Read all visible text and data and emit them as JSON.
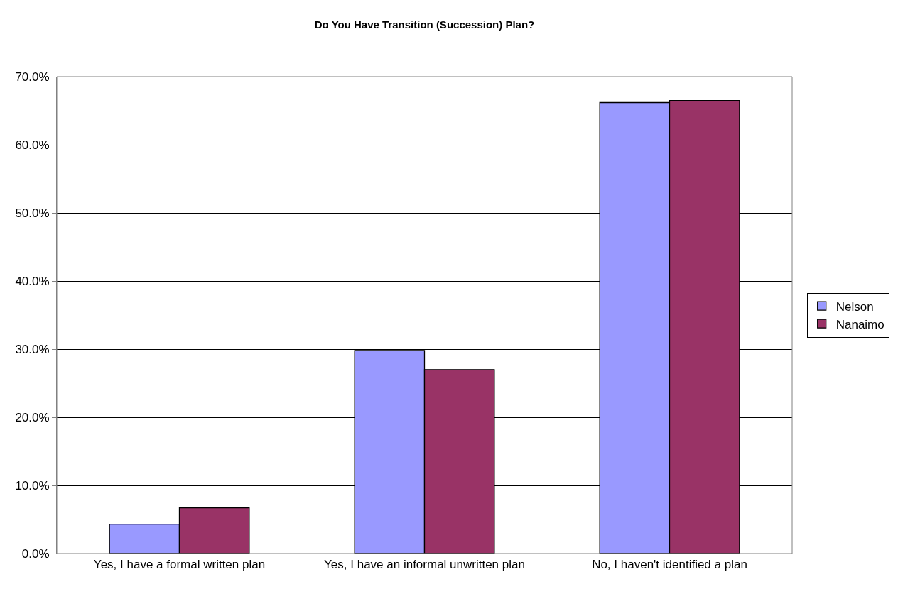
{
  "chart_data": {
    "type": "bar",
    "title": "Do You Have Transition (Succession) Plan?",
    "categories": [
      "Yes, I have a formal written plan",
      "Yes, I have an informal unwritten plan",
      "No, I haven't identified a plan"
    ],
    "series": [
      {
        "name": "Nelson",
        "color": "#9999ff",
        "values": [
          4.3,
          29.8,
          66.2
        ]
      },
      {
        "name": "Nanaimo",
        "color": "#993366",
        "values": [
          6.7,
          27.0,
          66.5
        ]
      }
    ],
    "ylim": [
      0,
      70
    ],
    "yticks": [
      {
        "value": 0,
        "label": "0.0%"
      },
      {
        "value": 10,
        "label": "10.0%"
      },
      {
        "value": 20,
        "label": "20.0%"
      },
      {
        "value": 30,
        "label": "30.0%"
      },
      {
        "value": 40,
        "label": "40.0%"
      },
      {
        "value": 50,
        "label": "50.0%"
      },
      {
        "value": 60,
        "label": "60.0%"
      },
      {
        "value": 70,
        "label": "70.0%"
      }
    ],
    "grid": "y",
    "legend": "right"
  }
}
